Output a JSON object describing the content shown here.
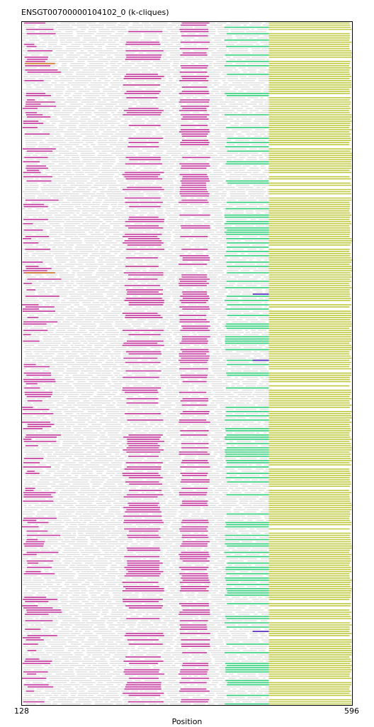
{
  "chart_data": {
    "type": "alignment",
    "title": "ENSGT00700000104102_0 (k-cliques)",
    "xlabel": "Position",
    "xlim": [
      128,
      596
    ],
    "tick_labels": [
      "128",
      "596"
    ],
    "row_count": 320,
    "background_color": "#dddddd",
    "series": [
      {
        "color": "#c2359c",
        "segments": [
          [
            128,
            170
          ],
          [
            270,
            330
          ],
          [
            350,
            395
          ]
        ]
      },
      {
        "color": "#2fcf7a",
        "segments": [
          [
            415,
            478
          ]
        ]
      },
      {
        "color": "#bfc93f",
        "segments": [
          [
            478,
            596
          ]
        ]
      },
      {
        "color": "#d07a2e",
        "segments": [
          [
            132,
            175
          ]
        ]
      },
      {
        "color": "#5b2dc4",
        "segments": [
          [
            455,
            478
          ]
        ]
      }
    ]
  }
}
